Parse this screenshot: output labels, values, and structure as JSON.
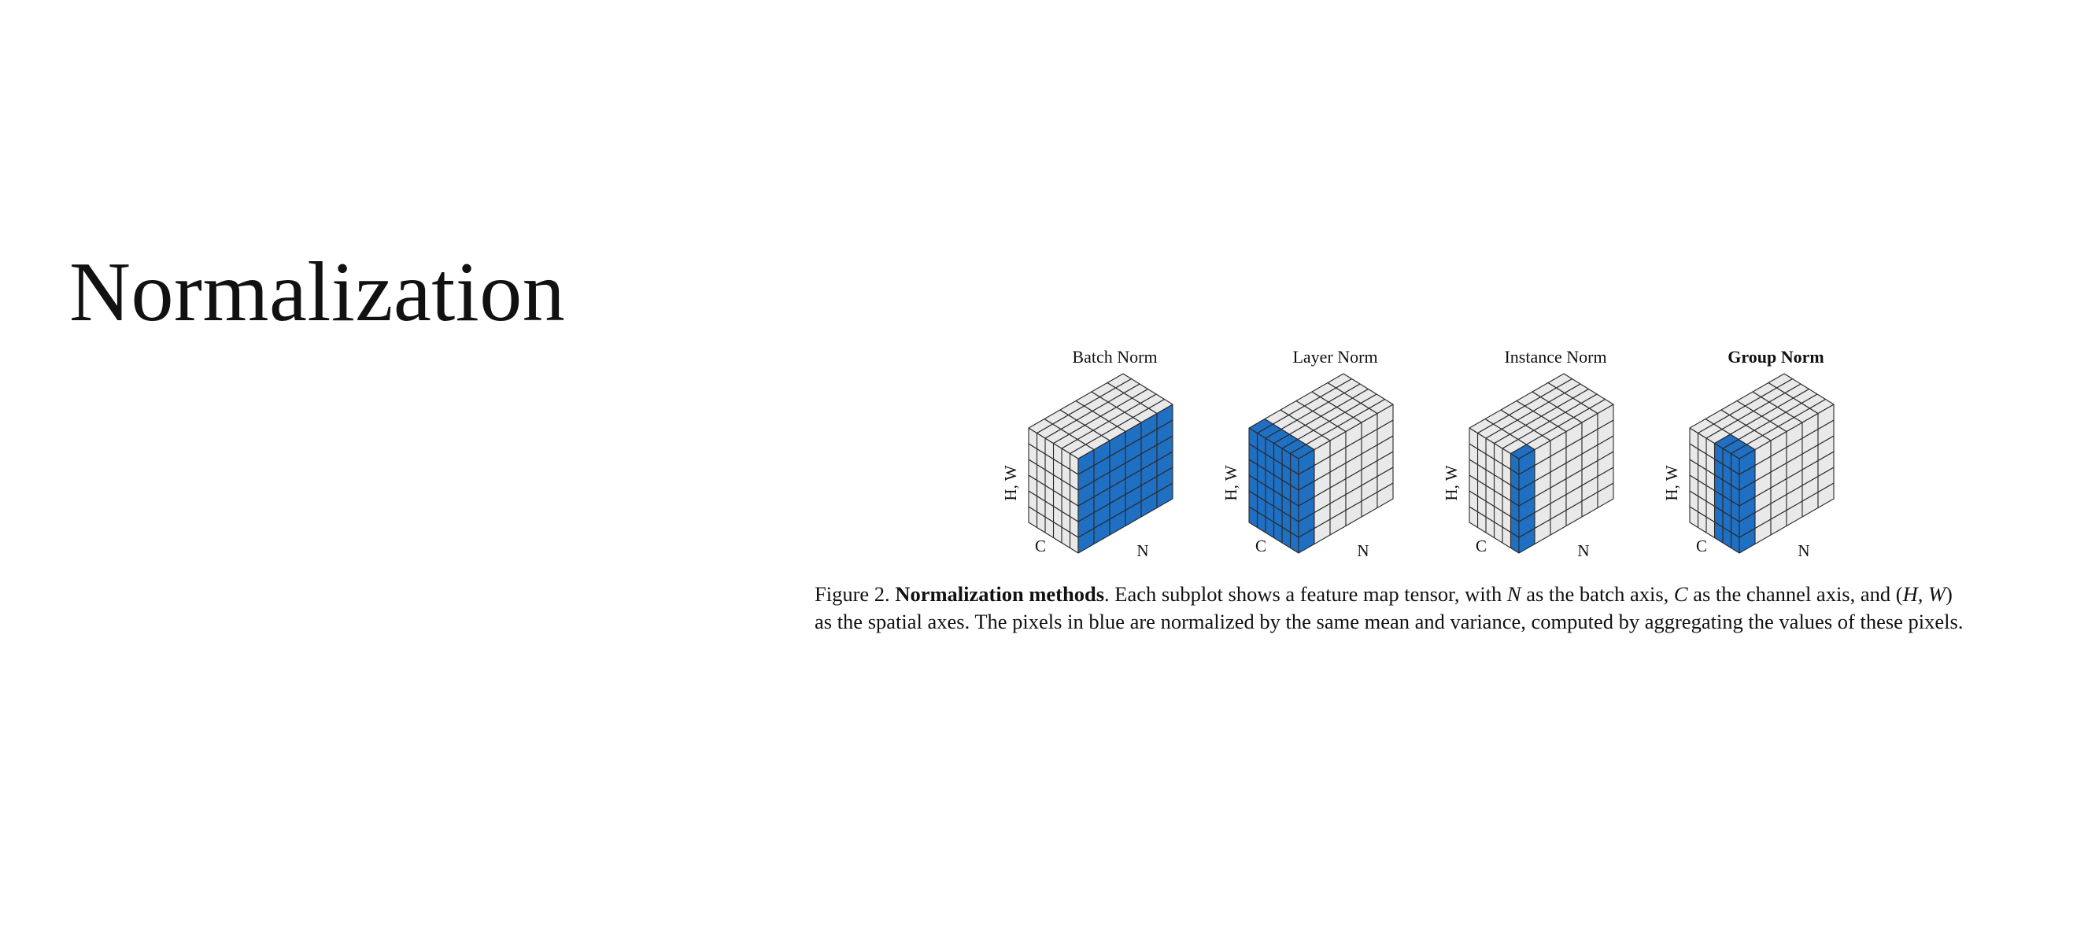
{
  "slide": {
    "title": "Normalization"
  },
  "figure": {
    "panels": [
      {
        "title": "Batch Norm",
        "bold": false,
        "hw_label": "H, W",
        "c_label": "C",
        "n_label": "N",
        "highlight": "batch"
      },
      {
        "title": "Layer Norm",
        "bold": false,
        "hw_label": "H, W",
        "c_label": "C",
        "n_label": "N",
        "highlight": "layer"
      },
      {
        "title": "Instance Norm",
        "bold": false,
        "hw_label": "H, W",
        "c_label": "C",
        "n_label": "N",
        "highlight": "instance"
      },
      {
        "title": "Group Norm",
        "bold": true,
        "hw_label": "H, W",
        "c_label": "C",
        "n_label": "N",
        "highlight": "group"
      }
    ],
    "colors": {
      "highlight": "#1f6fc3",
      "cell": "#e9e9e9",
      "edge": "#2a2a2a"
    },
    "caption": {
      "prefix": "Figure 2. ",
      "bold": "Normalization methods",
      "line1_rest_a": ". Each subplot shows a feature map tensor, with ",
      "N": "N",
      "line1_rest_b": " as the batch axis, ",
      "C": "C",
      "line1_rest_c": " as the channel axis, and (",
      "HW": "H, W",
      "line1_rest_d": ")",
      "line2": "as the spatial axes. The pixels in blue are normalized by the same mean and variance, computed by aggregating the values of these pixels."
    }
  }
}
